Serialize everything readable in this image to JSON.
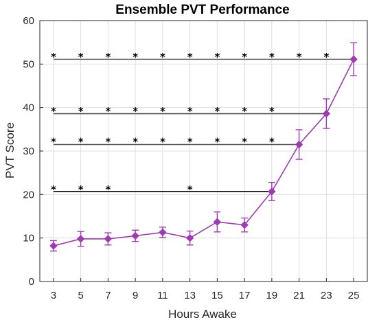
{
  "chart_data": {
    "type": "line",
    "title": "Ensemble PVT Performance",
    "xlabel": "Hours Awake",
    "ylabel": "PVT Score",
    "xlim": [
      2,
      26
    ],
    "ylim": [
      0,
      60
    ],
    "x_ticks": [
      3,
      5,
      7,
      9,
      11,
      13,
      15,
      17,
      19,
      21,
      23,
      25
    ],
    "y_ticks": [
      0,
      10,
      20,
      30,
      40,
      50,
      60
    ],
    "grid": true,
    "series": [
      {
        "x": [
          3,
          5,
          7,
          9,
          11,
          13,
          15,
          17,
          19,
          21,
          23,
          25
        ],
        "y": [
          8.2,
          9.8,
          9.8,
          10.5,
          11.3,
          10.0,
          13.7,
          13.0,
          20.7,
          31.5,
          38.6,
          51.1
        ],
        "error": [
          1.2,
          1.7,
          1.4,
          1.3,
          1.2,
          1.6,
          2.3,
          1.6,
          2.1,
          3.4,
          3.4,
          3.8
        ],
        "color": "#a03ab4"
      }
    ],
    "significance": [
      {
        "y": 20.7,
        "end_x": 19,
        "star_y": 21.6,
        "stars_x": [
          3,
          5,
          7,
          13
        ],
        "color": "#000000"
      },
      {
        "y": 31.5,
        "end_x": 21,
        "star_y": 32.6,
        "stars_x": [
          3,
          5,
          7,
          9,
          11,
          13,
          15,
          17,
          19
        ],
        "color": "#555555"
      },
      {
        "y": 38.6,
        "end_x": 23,
        "star_y": 39.6,
        "stars_x": [
          3,
          5,
          7,
          9,
          11,
          13,
          15,
          17,
          19
        ],
        "color": "#555555"
      },
      {
        "y": 51.1,
        "end_x": 25,
        "star_y": 52.1,
        "stars_x": [
          3,
          5,
          7,
          9,
          11,
          13,
          15,
          17,
          19,
          21,
          23
        ],
        "color": "#666666"
      }
    ],
    "star_symbol": "*"
  }
}
